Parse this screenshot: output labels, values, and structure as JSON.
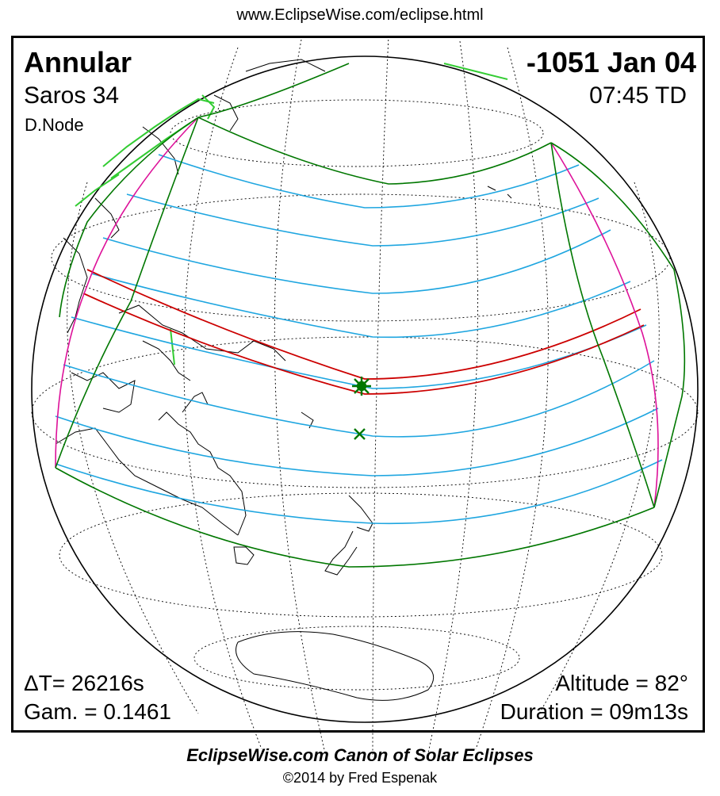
{
  "header": {
    "url": "www.EclipseWise.com/eclipse.html"
  },
  "eclipse": {
    "type": "Annular",
    "saros": "Saros  34",
    "node": "D.Node",
    "date": "-1051 Jan 04",
    "time": "07:45 TD",
    "delta_t": "ΔT=  26216s",
    "gamma": "Gam. = 0.1461",
    "altitude": "Altitude = 82°",
    "duration": "Duration = 09m13s"
  },
  "footer": {
    "title": "EclipseWise.com Canon of Solar Eclipses",
    "copyright": "©2014 by Fred Espenak"
  },
  "colors": {
    "central_path": "#cc0000",
    "penumbral_limits": "#007700",
    "magnitude_lines": "#1fa6e0",
    "rise_set_curves": "#dd1199",
    "land_north": "#33cc33",
    "greatest_eclipse_marker": "#007700"
  }
}
